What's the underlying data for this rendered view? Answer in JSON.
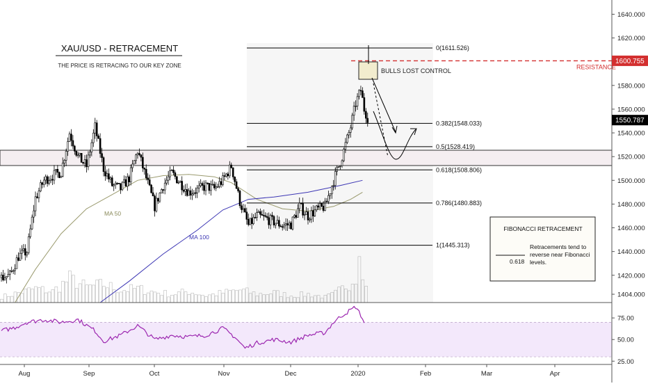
{
  "colors": {
    "bg": "#ffffff",
    "candle": "#000000",
    "volume": "#9e9e9e",
    "ma50": "#9a9a6e",
    "ma100": "#3c36b4",
    "rsi": "#9c27b0",
    "rsi_band": "#f3e8fb",
    "resistance": "#d32f2f",
    "grid": "#555555"
  },
  "chart_data": {
    "type": "candlestick",
    "title": "XAU/USD - RETRACEMENT",
    "subtitle": "THE PRICE IS RETRACING TO OUR KEY ZONE",
    "x_tick_labels": [
      "Aug",
      "Sep",
      "Oct",
      "Nov",
      "Dec",
      "2020",
      "Feb",
      "Mar",
      "Apr"
    ],
    "y_tick_labels": [
      "1640.000",
      "1620.000",
      "1600.000",
      "1580.000",
      "1560.000",
      "1540.000",
      "1520.000",
      "1500.000",
      "1480.000",
      "1460.000",
      "1440.000",
      "1420.000",
      "1404.000"
    ],
    "y_ticks": [
      1640,
      1620,
      1600,
      1580,
      1560,
      1540,
      1520,
      1500,
      1480,
      1460,
      1440,
      1420,
      1404
    ],
    "ylim": [
      1397,
      1652
    ],
    "rsi_tick_labels": [
      "75.00",
      "50.00",
      "25.00"
    ],
    "rsi_ticks": [
      75,
      50,
      25
    ],
    "rsi_ylim": [
      22,
      92
    ],
    "rsi_band": [
      30,
      70
    ],
    "price_close_samples": [
      [
        0,
        1418
      ],
      [
        5,
        1420
      ],
      [
        10,
        1436
      ],
      [
        15,
        1440
      ],
      [
        20,
        1485
      ],
      [
        25,
        1500
      ],
      [
        30,
        1504
      ],
      [
        35,
        1507
      ],
      [
        40,
        1540
      ],
      [
        45,
        1520
      ],
      [
        50,
        1512
      ],
      [
        55,
        1545
      ],
      [
        60,
        1510
      ],
      [
        65,
        1496
      ],
      [
        70,
        1493
      ],
      [
        75,
        1502
      ],
      [
        80,
        1525
      ],
      [
        85,
        1502
      ],
      [
        90,
        1478
      ],
      [
        95,
        1496
      ],
      [
        100,
        1506
      ],
      [
        105,
        1498
      ],
      [
        110,
        1490
      ],
      [
        115,
        1492
      ],
      [
        120,
        1495
      ],
      [
        125,
        1493
      ],
      [
        130,
        1500
      ],
      [
        135,
        1512
      ],
      [
        140,
        1482
      ],
      [
        145,
        1462
      ],
      [
        150,
        1470
      ],
      [
        155,
        1468
      ],
      [
        160,
        1465
      ],
      [
        165,
        1462
      ],
      [
        170,
        1463
      ],
      [
        175,
        1478
      ],
      [
        180,
        1470
      ],
      [
        185,
        1475
      ],
      [
        190,
        1478
      ],
      [
        195,
        1500
      ],
      [
        200,
        1520
      ],
      [
        205,
        1545
      ],
      [
        208,
        1565
      ],
      [
        211,
        1576
      ],
      [
        213,
        1560
      ],
      [
        215,
        1553
      ]
    ],
    "ma50_label": "MA 50",
    "ma100_label": "MA 100",
    "ma50_samples": [
      [
        8,
        1397
      ],
      [
        20,
        1425
      ],
      [
        35,
        1455
      ],
      [
        50,
        1476
      ],
      [
        65,
        1488
      ],
      [
        80,
        1500
      ],
      [
        95,
        1504
      ],
      [
        110,
        1505
      ],
      [
        125,
        1503
      ],
      [
        135,
        1498
      ],
      [
        150,
        1484
      ],
      [
        165,
        1476
      ],
      [
        180,
        1474
      ],
      [
        195,
        1478
      ],
      [
        205,
        1484
      ],
      [
        212,
        1490
      ]
    ],
    "ma100_samples": [
      [
        58,
        1397
      ],
      [
        75,
        1415
      ],
      [
        95,
        1438
      ],
      [
        115,
        1458
      ],
      [
        130,
        1475
      ],
      [
        145,
        1484
      ],
      [
        160,
        1486
      ],
      [
        180,
        1490
      ],
      [
        200,
        1496
      ],
      [
        212,
        1500
      ]
    ],
    "rsi_samples": [
      [
        0,
        60
      ],
      [
        8,
        64
      ],
      [
        15,
        70
      ],
      [
        25,
        73
      ],
      [
        35,
        70
      ],
      [
        45,
        73
      ],
      [
        55,
        60
      ],
      [
        60,
        48
      ],
      [
        70,
        55
      ],
      [
        80,
        66
      ],
      [
        85,
        58
      ],
      [
        90,
        50
      ],
      [
        100,
        55
      ],
      [
        110,
        53
      ],
      [
        120,
        55
      ],
      [
        130,
        63
      ],
      [
        137,
        53
      ],
      [
        143,
        40
      ],
      [
        150,
        46
      ],
      [
        160,
        50
      ],
      [
        170,
        47
      ],
      [
        180,
        55
      ],
      [
        190,
        58
      ],
      [
        195,
        70
      ],
      [
        200,
        78
      ],
      [
        205,
        84
      ],
      [
        208,
        88
      ],
      [
        211,
        78
      ],
      [
        213,
        70
      ]
    ],
    "volume_samples": [
      [
        0,
        8
      ],
      [
        10,
        14
      ],
      [
        20,
        20
      ],
      [
        30,
        16
      ],
      [
        40,
        34
      ],
      [
        50,
        22
      ],
      [
        60,
        26
      ],
      [
        70,
        18
      ],
      [
        80,
        20
      ],
      [
        90,
        15
      ],
      [
        100,
        12
      ],
      [
        110,
        16
      ],
      [
        120,
        10
      ],
      [
        130,
        14
      ],
      [
        140,
        18
      ],
      [
        150,
        12
      ],
      [
        160,
        14
      ],
      [
        170,
        10
      ],
      [
        180,
        12
      ],
      [
        190,
        8
      ],
      [
        195,
        12
      ],
      [
        200,
        20
      ],
      [
        205,
        30
      ],
      [
        208,
        40
      ],
      [
        210,
        110
      ],
      [
        212,
        30
      ]
    ],
    "fibonacci": [
      {
        "label": "0(1611.526)",
        "value": 1611.526
      },
      {
        "label": "0.382(1548.033)",
        "value": 1548.033
      },
      {
        "label": "0.5(1528.419)",
        "value": 1528.419
      },
      {
        "label": "0.618(1508.806)",
        "value": 1508.806
      },
      {
        "label": "0.786(1480.883)",
        "value": 1480.883
      },
      {
        "label": "1(1445.313)",
        "value": 1445.313
      }
    ],
    "key_zone": [
      1504,
      1517
    ],
    "resistance": {
      "label": "RESISTANCE",
      "value": 1600.755,
      "price_label": "1600.755"
    },
    "current_price": {
      "value": 1550.787,
      "label": "1550.787"
    },
    "annotations": {
      "bulls_lost_control": "BULLS LOST CONTROL"
    },
    "legend_box": {
      "title": "FIBONACCI RETRACEMENT",
      "line_value": "0.618",
      "text_line1": "Retracements tend to",
      "text_line2": "reverse near Fibonacci",
      "text_line3": "levels."
    }
  }
}
